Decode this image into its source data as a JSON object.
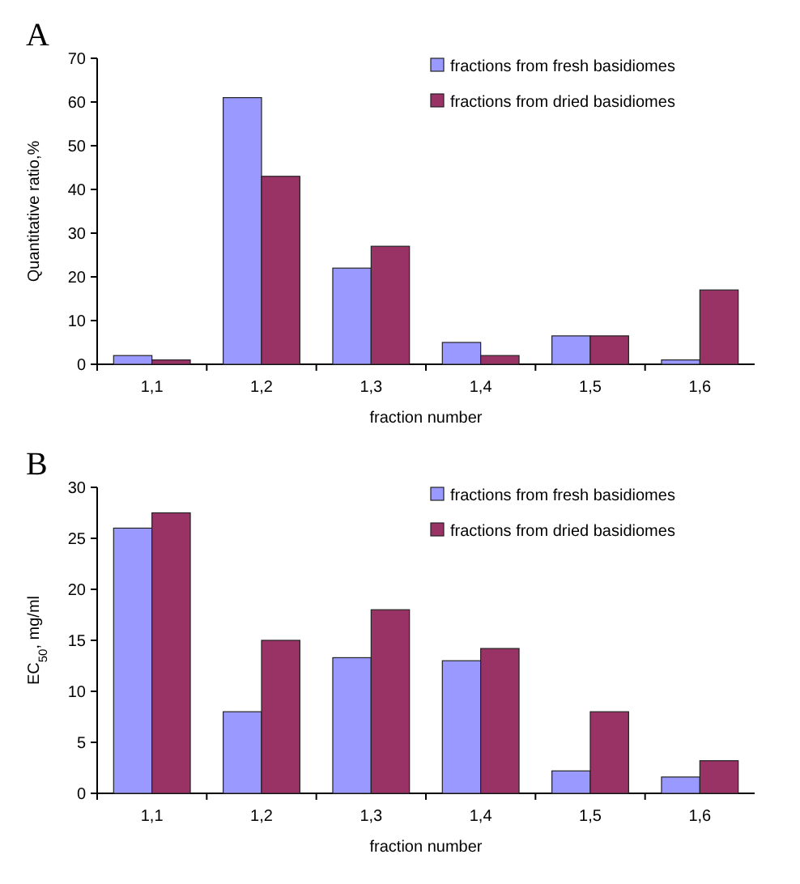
{
  "chart_data": [
    {
      "type": "bar",
      "title": "A",
      "xlabel": "fraction number",
      "ylabel": "Quantitative ratio,%",
      "categories": [
        "1,1",
        "1,2",
        "1,3",
        "1,4",
        "1,5",
        "1,6"
      ],
      "series": [
        {
          "name": "fractions from fresh basidiomes",
          "color": "#9999ff",
          "values": [
            2,
            61,
            22,
            5,
            6.5,
            1
          ]
        },
        {
          "name": "fractions from dried basidiomes",
          "color": "#993366",
          "values": [
            1,
            43,
            27,
            2,
            6.5,
            17
          ]
        }
      ],
      "ylim": [
        0,
        70
      ],
      "yticks": [
        0,
        10,
        20,
        30,
        40,
        50,
        60,
        70
      ],
      "legend": "top right",
      "grid": false
    },
    {
      "type": "bar",
      "title": "B",
      "xlabel": "fraction number",
      "ylabel": "EC$_{50}$, mg/ml",
      "categories": [
        "1,1",
        "1,2",
        "1,3",
        "1,4",
        "1,5",
        "1,6"
      ],
      "series": [
        {
          "name": "fractions from fresh basidiomes",
          "color": "#9999ff",
          "values": [
            26,
            8,
            13.3,
            13,
            2.2,
            1.6
          ]
        },
        {
          "name": "fractions from dried basidiomes",
          "color": "#993366",
          "values": [
            27.5,
            15,
            18,
            14.2,
            8,
            3.2
          ]
        }
      ],
      "ylim": [
        0,
        30
      ],
      "yticks": [
        0,
        5,
        10,
        15,
        20,
        25,
        30
      ],
      "legend": "top right",
      "grid": false
    }
  ]
}
